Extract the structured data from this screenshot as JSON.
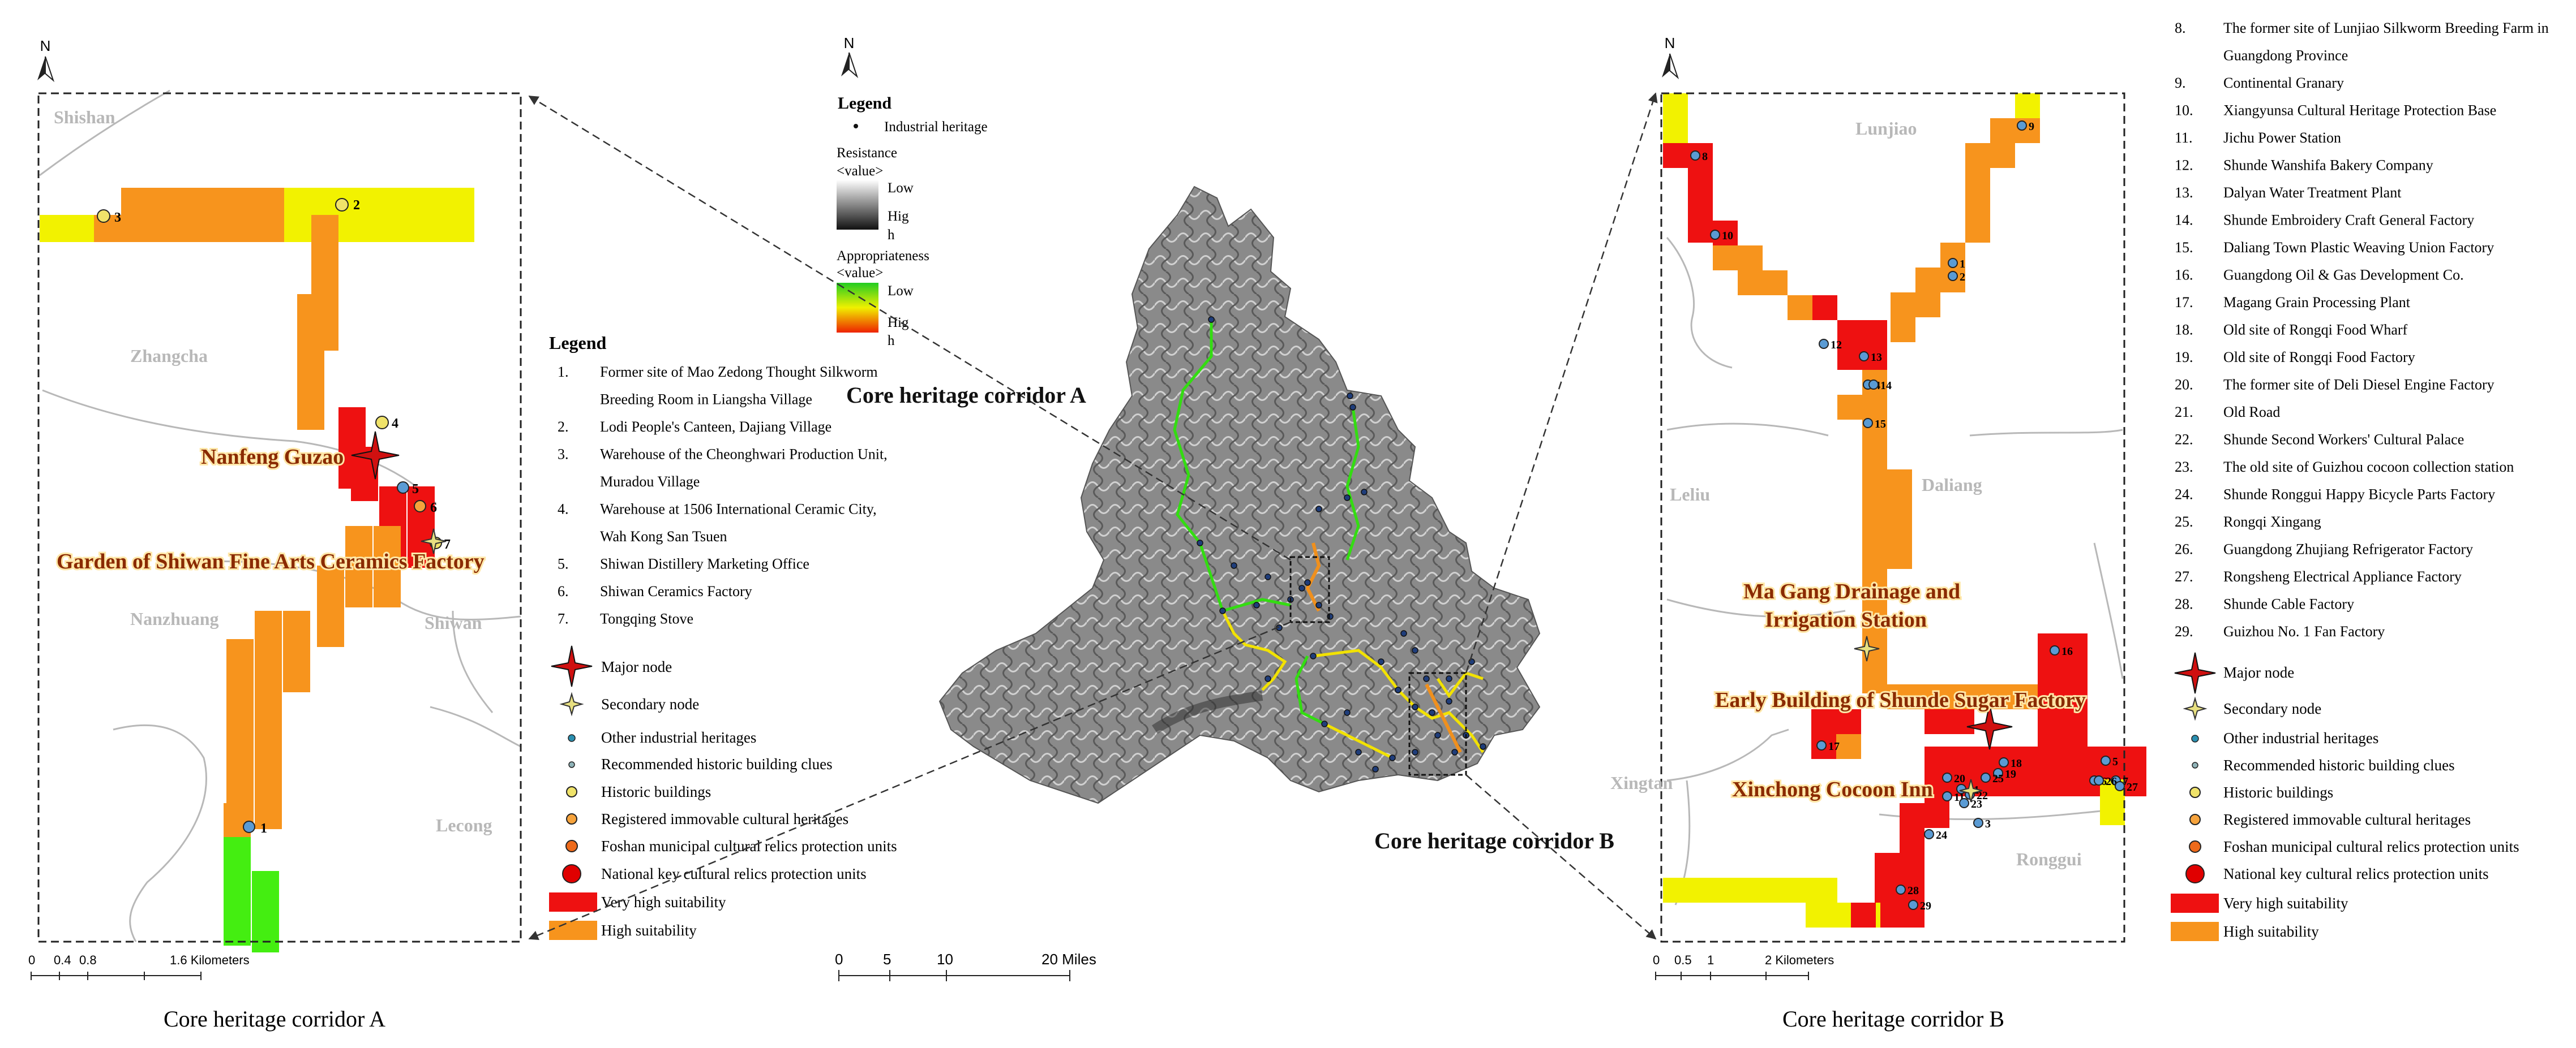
{
  "left_panel": {
    "caption": "Core heritage corridor A",
    "place_labels": [
      "Shishan",
      "Zhangcha",
      "Nanzhuang",
      "Shiwan",
      "Lecong"
    ],
    "node_labels": [
      "Nanfeng Guzao",
      "Garden of Shiwan Fine Arts Ceramics Factory"
    ],
    "point_numbers": [
      "1",
      "2",
      "3",
      "4",
      "5",
      "6",
      "7"
    ],
    "north": "N",
    "scale_ticks": [
      "0",
      "0.4",
      "0.8",
      "1.6 Kilometers"
    ]
  },
  "left_legend": {
    "title": "Legend",
    "items": [
      {
        "n": "1.",
        "lines": [
          "Former site of Mao Zedong Thought Silkworm",
          "Breeding Room in Liangsha Village"
        ]
      },
      {
        "n": "2.",
        "lines": [
          "Lodi People's Canteen, Dajiang Village"
        ]
      },
      {
        "n": "3.",
        "lines": [
          "Warehouse of the Cheonghwari Production Unit,",
          "Muradou Village"
        ]
      },
      {
        "n": "4.",
        "lines": [
          "Warehouse at 1506 International Ceramic City,",
          "Wah Kong San Tsuen"
        ]
      },
      {
        "n": "5.",
        "lines": [
          "Shiwan Distillery Marketing Office"
        ]
      },
      {
        "n": "6.",
        "lines": [
          "Shiwan Ceramics Factory"
        ]
      },
      {
        "n": "7.",
        "lines": [
          "Tongqing Stove"
        ]
      }
    ],
    "symbols": [
      "Major node",
      "Secondary node",
      "Other industrial heritages",
      "Recommended historic building clues",
      "Historic buildings",
      "Registered immovable cultural heritages",
      "Foshan municipal cultural relics protection units",
      "National key cultural relics protection units",
      "Very high suitability",
      "High suitability"
    ]
  },
  "center_map": {
    "north": "N",
    "legend_title": "Legend",
    "legend_point": "Industrial heritage",
    "resistance_title": "Resistance",
    "value_label": "<value>",
    "low": "Low",
    "high_a": "Hig",
    "high_b": "h",
    "appropriateness_title": "Appropriateness",
    "label_a": "Core heritage corridor A",
    "label_b": "Core heritage corridor B",
    "scale_ticks": [
      "0",
      "5",
      "10",
      "20 Miles"
    ]
  },
  "right_panel": {
    "caption": "Core heritage corridor B",
    "place_labels": [
      "Lunjiao",
      "Leliu",
      "Daliang",
      "Xingtan",
      "Ronggui"
    ],
    "node_labels": [
      "Ma Gang Drainage and",
      "Irrigation Station",
      "Early Building of Shunde Sugar Factory",
      "Xinchong Cocoon Inn"
    ],
    "point_numbers": [
      "1",
      "2",
      "3",
      "4",
      "5",
      "6",
      "7",
      "8",
      "9",
      "10",
      "11",
      "12",
      "13",
      "14",
      "15",
      "16",
      "17",
      "18",
      "19",
      "20",
      "21",
      "22",
      "23",
      "24",
      "25",
      "26",
      "27",
      "28",
      "29"
    ],
    "north": "N",
    "scale_ticks": [
      "0",
      "0.5",
      "1",
      "2 Kilometers"
    ]
  },
  "right_legend": {
    "items": [
      {
        "n": "8.",
        "lines": [
          "The former site of Lunjiao Silkworm Breeding Farm in",
          "Guangdong Province"
        ]
      },
      {
        "n": "9.",
        "lines": [
          "Continental Granary"
        ]
      },
      {
        "n": "10.",
        "lines": [
          "Xiangyunsa Cultural Heritage Protection Base"
        ]
      },
      {
        "n": "11.",
        "lines": [
          "Jichu Power Station"
        ]
      },
      {
        "n": "12.",
        "lines": [
          "Shunde Wanshifa Bakery Company"
        ]
      },
      {
        "n": "13.",
        "lines": [
          "Dalyan Water Treatment Plant"
        ]
      },
      {
        "n": "14.",
        "lines": [
          "Shunde Embroidery Craft General Factory"
        ]
      },
      {
        "n": "15.",
        "lines": [
          "Daliang Town Plastic Weaving Union Factory"
        ]
      },
      {
        "n": "16.",
        "lines": [
          "Guangdong Oil & Gas Development Co."
        ]
      },
      {
        "n": "17.",
        "lines": [
          "Magang Grain Processing Plant"
        ]
      },
      {
        "n": "18.",
        "lines": [
          "Old site of Rongqi Food Wharf"
        ]
      },
      {
        "n": "19.",
        "lines": [
          "Old site of Rongqi Food Factory"
        ]
      },
      {
        "n": "20.",
        "lines": [
          "The former site of Deli Diesel Engine Factory"
        ]
      },
      {
        "n": "21.",
        "lines": [
          "Old Road"
        ]
      },
      {
        "n": "22.",
        "lines": [
          "Shunde Second Workers' Cultural Palace"
        ]
      },
      {
        "n": "23.",
        "lines": [
          "The old site of Guizhou cocoon collection station"
        ]
      },
      {
        "n": "24.",
        "lines": [
          "Shunde Ronggui Happy Bicycle Parts Factory"
        ]
      },
      {
        "n": "25.",
        "lines": [
          "Rongqi Xingang"
        ]
      },
      {
        "n": "26.",
        "lines": [
          "Guangdong Zhujiang Refrigerator Factory"
        ]
      },
      {
        "n": "27.",
        "lines": [
          "Rongsheng Electrical Appliance Factory"
        ]
      },
      {
        "n": "28.",
        "lines": [
          "Shunde Cable Factory"
        ]
      },
      {
        "n": "29.",
        "lines": [
          "Guizhou No. 1 Fan Factory"
        ]
      }
    ],
    "symbols": [
      "Major node",
      "Secondary node",
      "Other industrial heritages",
      "Recommended historic building clues",
      "Historic buildings",
      "Registered immovable cultural heritages",
      "Foshan municipal cultural relics protection units",
      "National key cultural relics protection units",
      "Very high suitability",
      "High suitability"
    ]
  },
  "colors": {
    "very_high": "#ee1111",
    "high": "#f7941d",
    "yellow": "#f2f200",
    "green": "#44ee11",
    "road": "#b8b8b8",
    "place_label": "#b8b8b8"
  },
  "icons": [
    "north-arrow-icon",
    "major-node-star-icon",
    "secondary-node-star-icon"
  ]
}
